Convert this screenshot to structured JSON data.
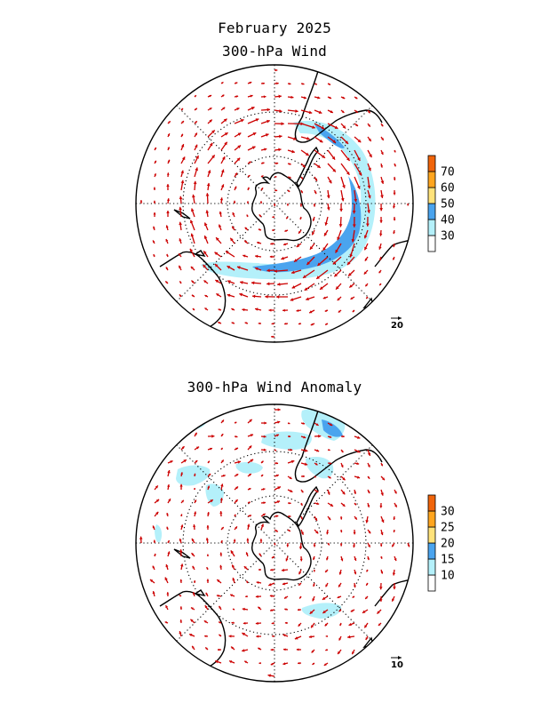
{
  "figure": {
    "title": "February 2025",
    "colors": {
      "arrow": "#cc0000",
      "coast": "#000000",
      "grid": "#000000"
    }
  },
  "panels": [
    {
      "id": "wind",
      "subtitle": "300-hPa Wind",
      "projection": "south-polar-stereographic",
      "colorbar": {
        "levels": [
          30,
          40,
          50,
          60,
          70
        ],
        "labels": [
          "30",
          "40",
          "50",
          "60",
          "70"
        ],
        "colors": [
          "#ffffff",
          "#b4f0fa",
          "#4aa4ee",
          "#ffe27a",
          "#ffa51e",
          "#f0640a"
        ]
      },
      "reference_vector": {
        "label": "20"
      },
      "shading": "jet band 30-50, strongest east of the pole"
    },
    {
      "id": "anomaly",
      "subtitle": "300-hPa Wind Anomaly",
      "projection": "south-polar-stereographic",
      "colorbar": {
        "levels": [
          10,
          15,
          20,
          25,
          30
        ],
        "labels": [
          "10",
          "15",
          "20",
          "25",
          "30"
        ],
        "colors": [
          "#ffffff",
          "#b4f0fa",
          "#4aa4ee",
          "#ffe27a",
          "#ffa51e",
          "#f0640a"
        ]
      },
      "reference_vector": {
        "label": "10"
      },
      "shading": "scattered patches 10-20"
    }
  ]
}
